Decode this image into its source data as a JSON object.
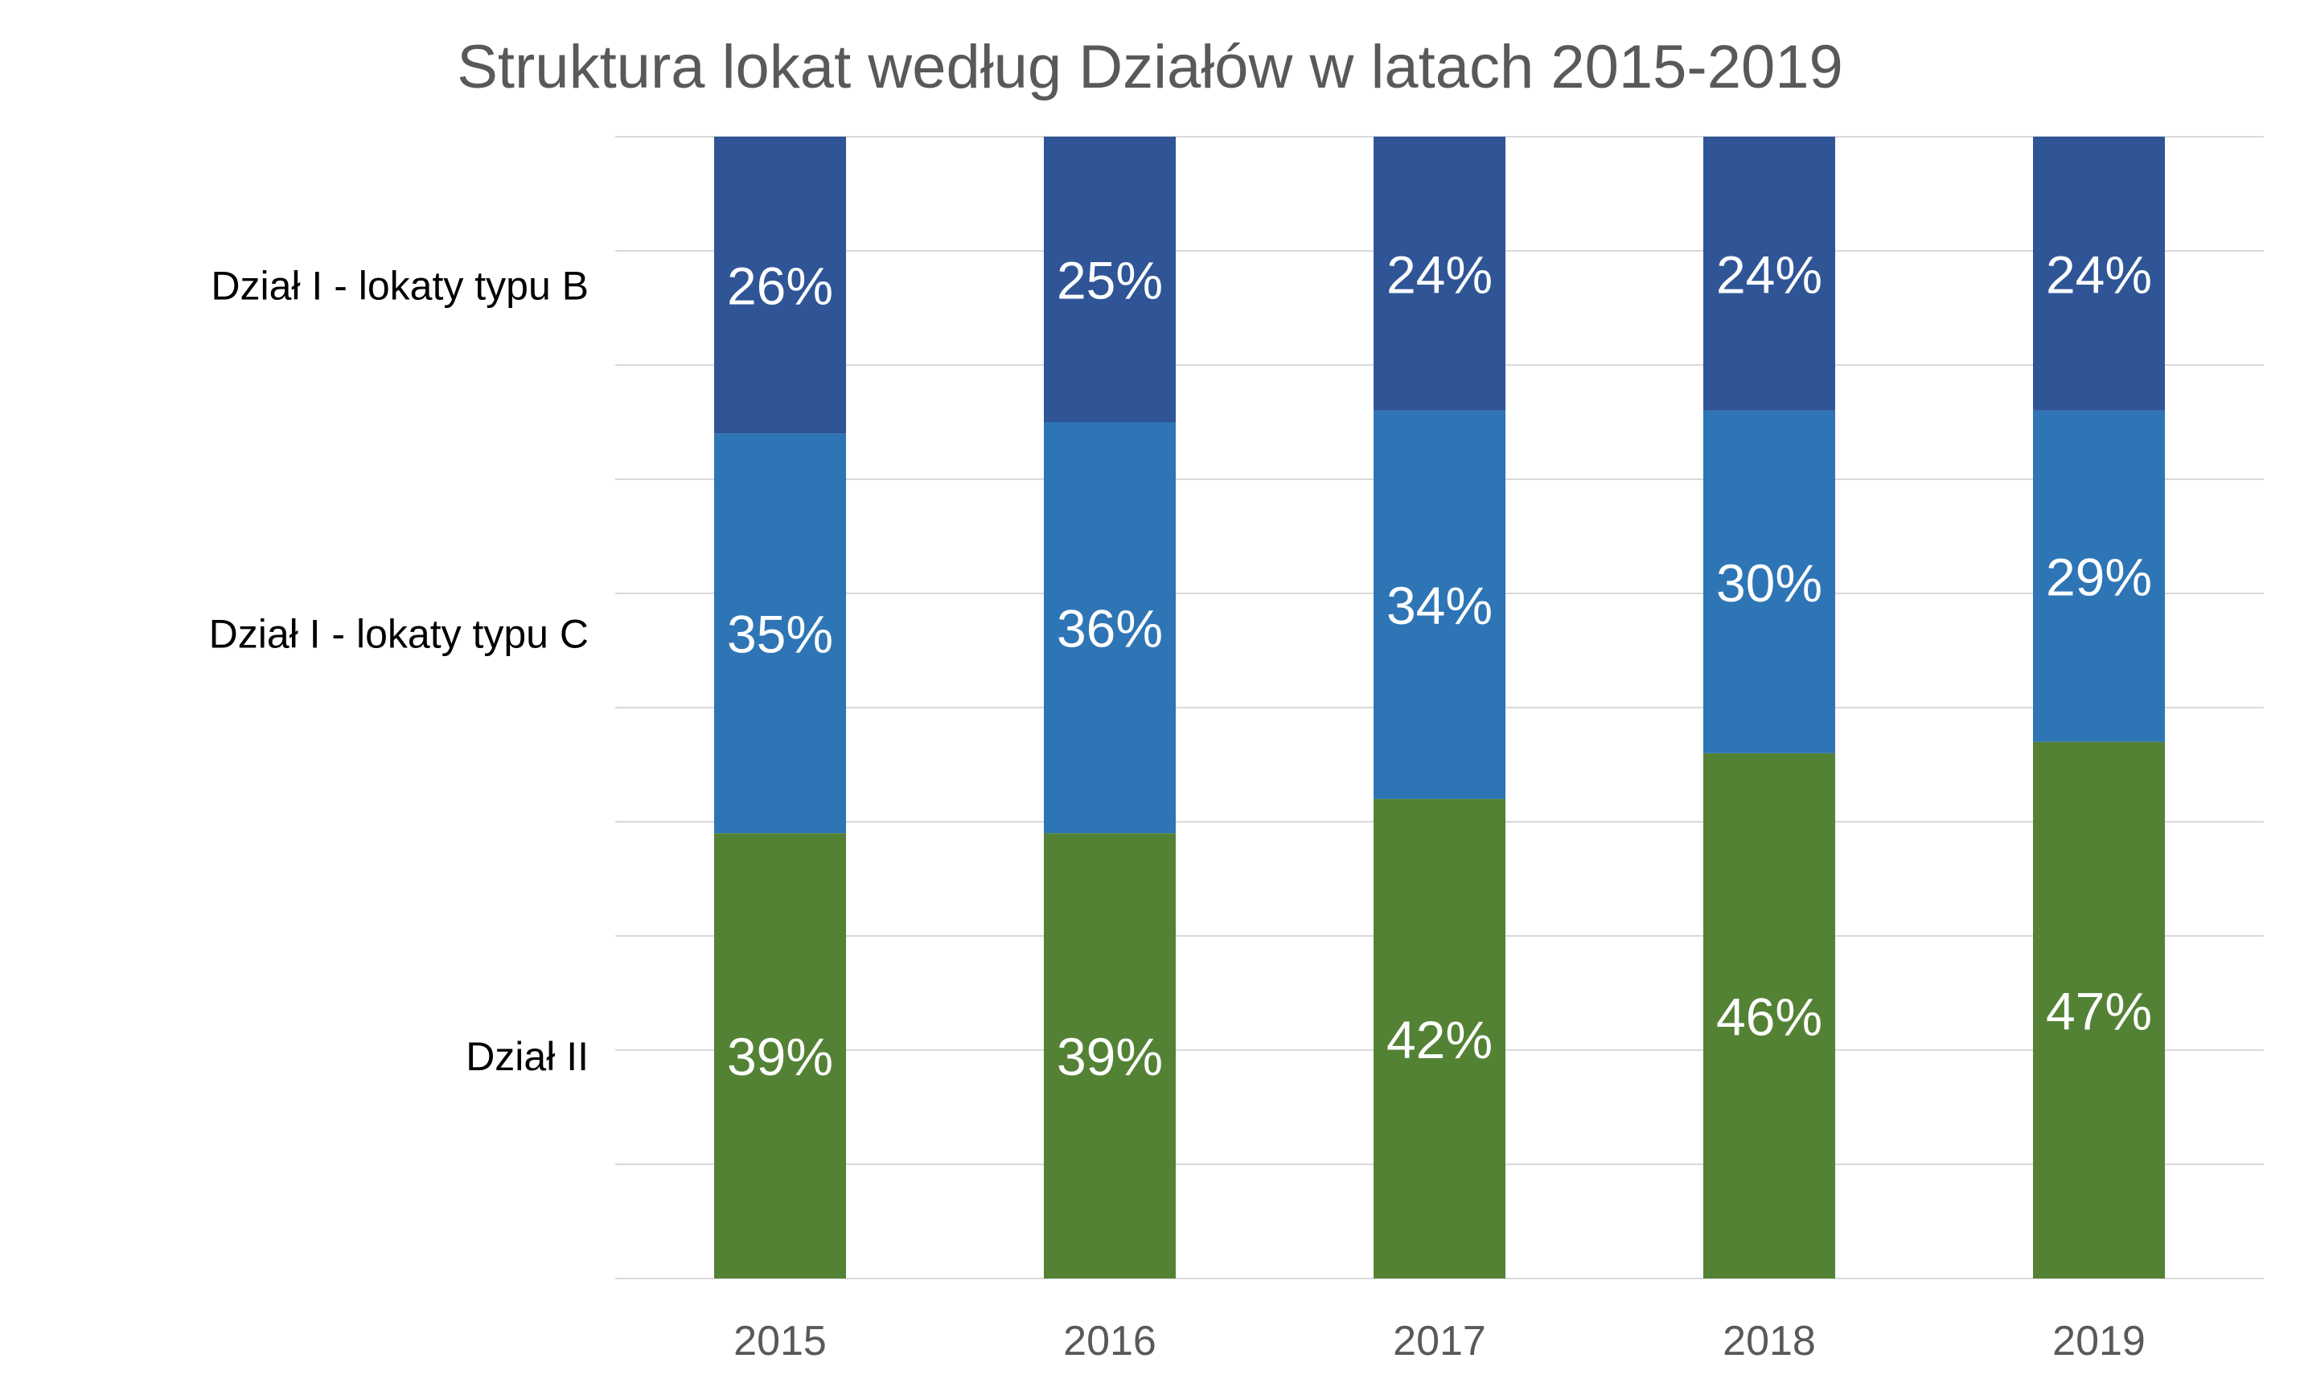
{
  "chart_data": {
    "type": "bar",
    "stacked": true,
    "title": "Struktura lokat według Działów w latach 2015-2019",
    "categories": [
      "2015",
      "2016",
      "2017",
      "2018",
      "2019"
    ],
    "series": [
      {
        "name": "Dział II",
        "values": [
          39,
          39,
          42,
          46,
          47
        ],
        "color": "#548235"
      },
      {
        "name": "Dział I - lokaty typu C",
        "values": [
          35,
          36,
          34,
          30,
          29
        ],
        "color": "#2E75B6"
      },
      {
        "name": "Dział I - lokaty typu B",
        "values": [
          26,
          25,
          24,
          24,
          24
        ],
        "color": "#2F5597"
      }
    ],
    "value_suffix": "%",
    "ylim": [
      0,
      100
    ],
    "grid": true,
    "legend": "left, aligned with each stack segment",
    "label_color": "#ffffff",
    "grid_color": "#d9d9d9",
    "axis_text_color": "#595959",
    "legend_text_color": "#000000"
  }
}
